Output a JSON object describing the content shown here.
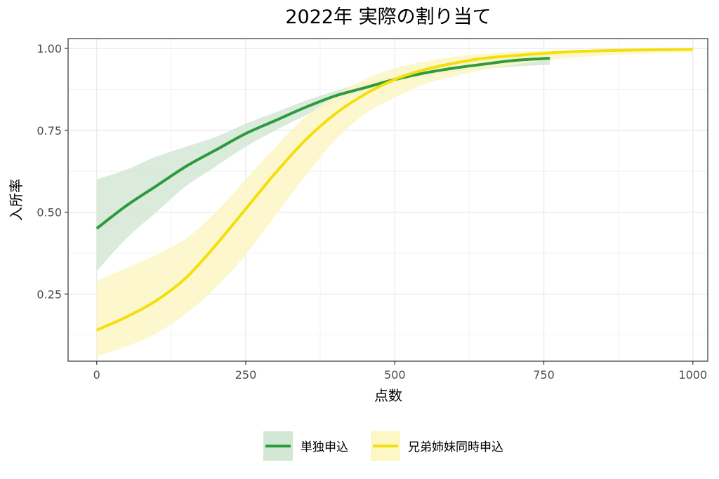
{
  "chart_data": {
    "type": "line",
    "title": "2022年 実際の割り当て",
    "xlabel": "点数",
    "ylabel": "入所率",
    "xlim": [
      -48,
      1025
    ],
    "ylim": [
      0.045,
      1.03
    ],
    "x_ticks": [
      0,
      250,
      500,
      750,
      1000
    ],
    "x_tick_labels": [
      "0",
      "250",
      "500",
      "750",
      "1000"
    ],
    "y_ticks": [
      0.25,
      0.5,
      0.75,
      1.0
    ],
    "y_tick_labels": [
      "0.25",
      "0.50",
      "0.75",
      "1.00"
    ],
    "grid": true,
    "legend_position": "bottom",
    "series": [
      {
        "name": "単独申込",
        "color": "#2e9a3e",
        "band_color": "#d3e7d5",
        "x": [
          0,
          50,
          100,
          150,
          200,
          250,
          300,
          350,
          400,
          450,
          500,
          550,
          600,
          650,
          700,
          760
        ],
        "y": [
          0.45,
          0.52,
          0.58,
          0.64,
          0.69,
          0.74,
          0.78,
          0.82,
          0.855,
          0.88,
          0.905,
          0.925,
          0.94,
          0.952,
          0.963,
          0.97
        ],
        "lower": [
          0.32,
          0.42,
          0.5,
          0.58,
          0.64,
          0.7,
          0.75,
          0.795,
          0.835,
          0.87,
          0.895,
          0.915,
          0.928,
          0.937,
          0.945,
          0.95
        ],
        "upper": [
          0.6,
          0.63,
          0.67,
          0.7,
          0.73,
          0.77,
          0.805,
          0.84,
          0.87,
          0.895,
          0.918,
          0.935,
          0.952,
          0.965,
          0.975,
          0.985
        ]
      },
      {
        "name": "兄弟姉妹同時申込",
        "color": "#f5df0a",
        "band_color": "#fdf6c5",
        "x": [
          0,
          50,
          100,
          150,
          200,
          250,
          300,
          350,
          400,
          450,
          500,
          550,
          600,
          650,
          700,
          750,
          800,
          850,
          900,
          950,
          1000
        ],
        "y": [
          0.14,
          0.18,
          0.23,
          0.3,
          0.4,
          0.51,
          0.62,
          0.72,
          0.8,
          0.86,
          0.905,
          0.935,
          0.955,
          0.97,
          0.978,
          0.985,
          0.99,
          0.993,
          0.995,
          0.996,
          0.997
        ],
        "lower": [
          0.06,
          0.09,
          0.13,
          0.19,
          0.27,
          0.37,
          0.49,
          0.61,
          0.72,
          0.8,
          0.85,
          0.89,
          0.915,
          0.935,
          0.95,
          0.963,
          0.972,
          0.978,
          0.983,
          0.986,
          0.988
        ],
        "upper": [
          0.29,
          0.33,
          0.37,
          0.42,
          0.5,
          0.6,
          0.7,
          0.79,
          0.855,
          0.905,
          0.94,
          0.96,
          0.975,
          0.984,
          0.99,
          0.993,
          0.995,
          0.997,
          0.998,
          0.999,
          0.999
        ]
      }
    ]
  }
}
